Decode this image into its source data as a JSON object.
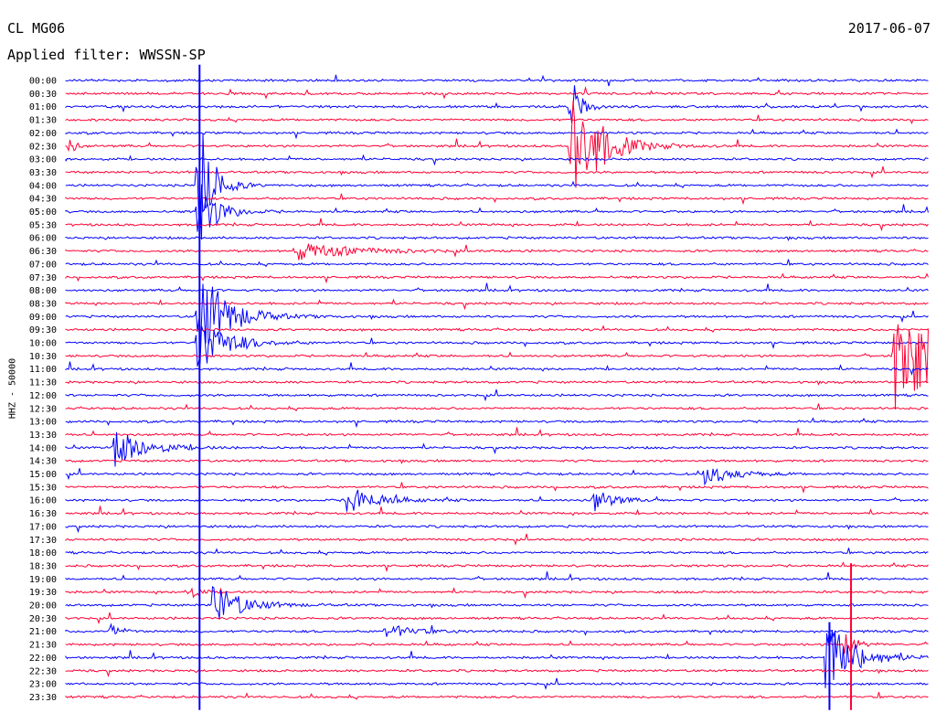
{
  "header": {
    "station": "CL MG06",
    "date": "2017-06-07",
    "filter": "Applied filter: WWSSN-SP"
  },
  "chart_data": {
    "type": "line",
    "title": "CL MG06",
    "ylabel": "HHZ - 50000",
    "line_colors": [
      "#0000ff",
      "#ff0033"
    ],
    "rows": [
      "00:00",
      "00:30",
      "01:00",
      "01:30",
      "02:00",
      "02:30",
      "03:00",
      "03:30",
      "04:00",
      "04:30",
      "05:00",
      "05:30",
      "06:00",
      "06:30",
      "07:00",
      "07:30",
      "08:00",
      "08:30",
      "09:00",
      "09:30",
      "10:00",
      "10:30",
      "11:00",
      "11:30",
      "12:00",
      "12:30",
      "13:00",
      "13:30",
      "14:00",
      "14:30",
      "15:00",
      "15:30",
      "16:00",
      "16:30",
      "17:00",
      "17:30",
      "18:00",
      "18:30",
      "19:00",
      "19:30",
      "20:00",
      "20:30",
      "21:00",
      "21:30",
      "22:00",
      "22:30",
      "23:00",
      "23:30"
    ],
    "events": [
      {
        "row": 8,
        "t": 0.152,
        "amp": 90,
        "dur": 0.015
      },
      {
        "row": 10,
        "t": 0.152,
        "amp": 40,
        "dur": 0.02
      },
      {
        "row": 18,
        "t": 0.152,
        "amp": 60,
        "dur": 0.03
      },
      {
        "row": 20,
        "t": 0.152,
        "amp": 35,
        "dur": 0.03
      },
      {
        "row": 2,
        "t": 0.585,
        "amp": 40,
        "dur": 0.01
      },
      {
        "row": 5,
        "t": 0.585,
        "amp": 75,
        "dur": 0.03
      },
      {
        "row": 5,
        "t": 0.003,
        "amp": 20,
        "dur": 0.005
      },
      {
        "row": 13,
        "t": 0.265,
        "amp": 10,
        "dur": 0.06
      },
      {
        "row": 21,
        "t": 0.96,
        "amp": 80,
        "dur": 0.04
      },
      {
        "row": 28,
        "t": 0.055,
        "amp": 25,
        "dur": 0.03
      },
      {
        "row": 32,
        "t": 0.325,
        "amp": 18,
        "dur": 0.03
      },
      {
        "row": 32,
        "t": 0.61,
        "amp": 15,
        "dur": 0.02
      },
      {
        "row": 30,
        "t": 0.74,
        "amp": 12,
        "dur": 0.03
      },
      {
        "row": 40,
        "t": 0.17,
        "amp": 25,
        "dur": 0.03
      },
      {
        "row": 44,
        "t": 0.88,
        "amp": 45,
        "dur": 0.03
      },
      {
        "row": 42,
        "t": 0.052,
        "amp": 10,
        "dur": 0.01
      },
      {
        "row": 42,
        "t": 0.37,
        "amp": 8,
        "dur": 0.03
      },
      {
        "row": 39,
        "t": 0.14,
        "amp": 12,
        "dur": 0.01
      },
      {
        "row": 43,
        "t": 0.9,
        "amp": 25,
        "dur": 0.01
      }
    ],
    "tall_marks": [
      {
        "t": 0.155,
        "from": 0,
        "to": 48,
        "color": "#0000ff"
      },
      {
        "t": 0.885,
        "from": 42.5,
        "to": 48,
        "color": "#0000ff"
      },
      {
        "t": 0.91,
        "from": 38,
        "to": 48,
        "color": "#ff0033"
      }
    ]
  }
}
